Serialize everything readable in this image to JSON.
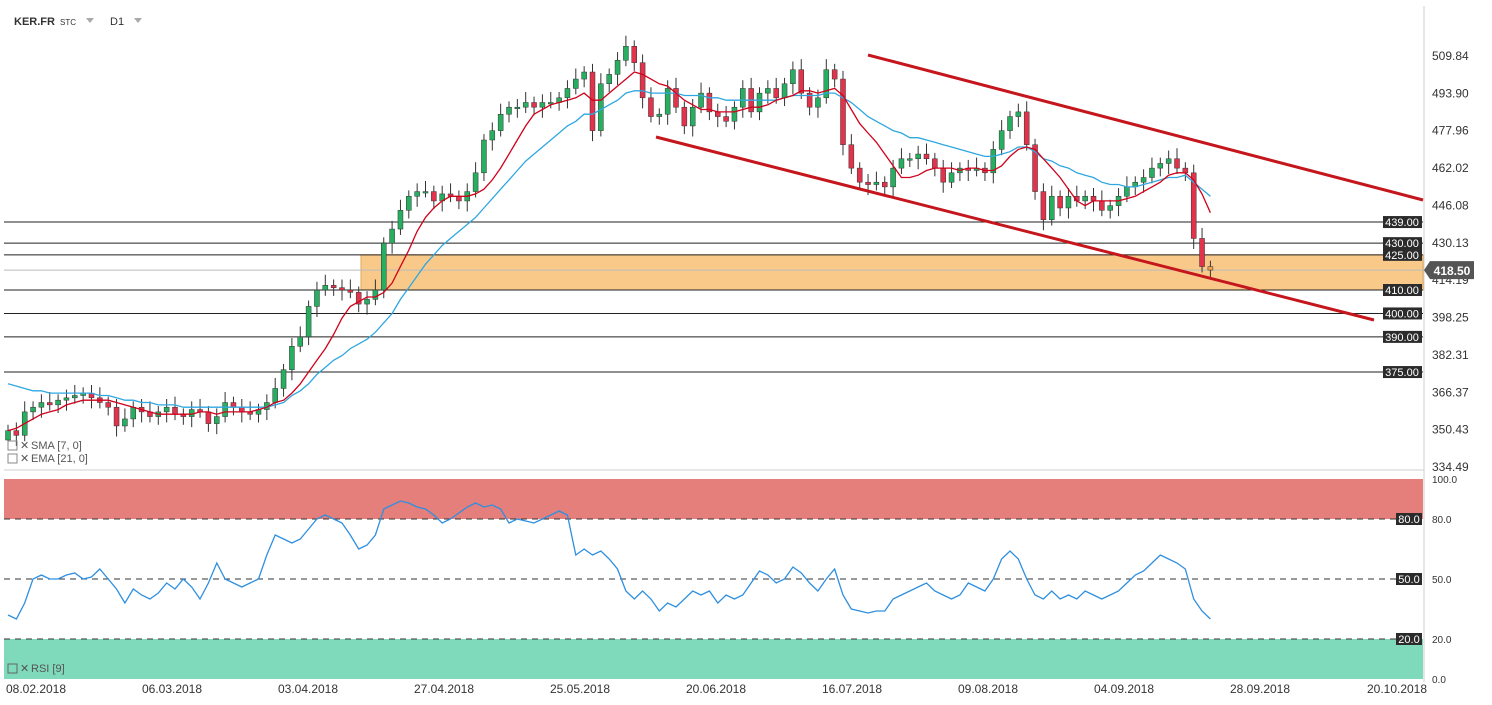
{
  "header": {
    "symbol": "KER.FR",
    "type_label": "STC",
    "interval": "D1"
  },
  "indicators": {
    "sma": "SMA [7, 0]",
    "ema": "EMA [21, 0]",
    "rsi": "RSI [9]"
  },
  "colors": {
    "bull": "#27ae60",
    "bear": "#e2334c",
    "sma": "#d0021b",
    "ema": "#2fa7e0",
    "channel": "#c4161c",
    "zone": "#f9c98a",
    "rsi_line": "#2f8fe0",
    "overbought": "#e57f7b",
    "oversold": "#7fd9bb",
    "level_tag": "#2b2b2b",
    "price_tag": "#555555"
  },
  "chart_data": [
    {
      "type": "candlestick",
      "title": "",
      "x_dates": [
        "08.02.2018",
        "06.03.2018",
        "03.04.2018",
        "27.04.2018",
        "25.05.2018",
        "20.06.2018",
        "16.07.2018",
        "09.08.2018",
        "04.09.2018",
        "28.09.2018",
        "20.10.2018"
      ],
      "y_ticks": [
        "509.84",
        "493.90",
        "477.96",
        "462.02",
        "446.08",
        "430.13",
        "414.19",
        "398.25",
        "382.31",
        "366.37",
        "350.43",
        "334.49"
      ],
      "ylim": [
        334.49,
        509.84
      ],
      "current_price": "418.50",
      "levels": [
        "439.00",
        "430.00",
        "425.00",
        "410.00",
        "400.00",
        "390.00",
        "375.00"
      ],
      "support_zone": [
        410,
        425
      ],
      "closes": [
        350,
        348,
        358,
        360,
        362,
        361,
        363,
        364,
        365,
        366,
        364,
        362,
        360,
        352,
        355,
        360,
        358,
        356,
        358,
        360,
        357,
        356,
        359,
        358,
        353,
        356,
        362,
        360,
        358,
        357,
        359,
        362,
        368,
        376,
        386,
        390,
        403,
        410,
        412,
        411,
        410,
        409,
        404,
        406,
        410,
        430,
        436,
        444,
        450,
        452,
        452,
        448,
        451,
        450,
        448,
        452,
        460,
        474,
        478,
        485,
        488,
        488,
        490,
        488,
        490,
        490,
        492,
        496,
        500,
        503,
        478,
        498,
        502,
        508,
        514,
        507,
        492,
        484,
        485,
        496,
        488,
        480,
        488,
        494,
        486,
        484,
        482,
        488,
        496,
        486,
        494,
        496,
        492,
        498,
        504,
        494,
        488,
        492,
        504,
        500,
        472,
        462,
        456,
        455,
        456,
        454,
        462,
        466,
        466,
        468,
        466,
        462,
        456,
        460,
        462,
        461,
        462,
        460,
        470,
        478,
        484,
        486,
        472,
        452,
        440,
        450,
        445,
        450,
        448,
        450,
        448,
        444,
        446,
        450,
        454,
        456,
        458,
        462,
        464,
        466,
        462,
        460,
        432,
        420,
        418.5
      ],
      "sma": [
        350,
        351,
        353,
        355,
        357,
        358,
        359,
        361,
        362,
        363,
        363,
        363,
        363,
        362,
        361,
        360,
        359,
        358,
        357,
        357,
        357,
        357,
        357,
        358,
        358,
        357,
        358,
        358,
        358,
        358,
        359,
        360,
        362,
        363,
        366,
        370,
        375,
        380,
        385,
        391,
        398,
        403,
        405,
        407,
        407,
        409,
        413,
        420,
        427,
        435,
        441,
        445,
        448,
        450,
        450,
        450,
        451,
        453,
        457,
        462,
        468,
        474,
        480,
        485,
        487,
        489,
        490,
        491,
        492,
        494,
        491,
        491,
        494,
        497,
        500,
        503,
        502,
        500,
        498,
        497,
        494,
        491,
        489,
        487,
        487,
        486,
        486,
        486,
        487,
        488,
        488,
        489,
        491,
        492,
        493,
        495,
        495,
        494,
        495,
        496,
        493,
        487,
        481,
        477,
        473,
        468,
        463,
        458,
        458,
        459,
        461,
        462,
        462,
        462,
        461,
        462,
        462,
        461,
        461,
        463,
        467,
        470,
        471,
        470,
        466,
        462,
        458,
        453,
        448,
        446,
        448,
        448,
        448,
        448,
        449,
        450,
        452,
        454,
        456,
        459,
        460,
        460,
        457,
        451,
        443
      ],
      "ema": [
        370,
        369,
        368,
        367,
        367,
        366,
        366,
        366,
        366,
        366,
        366,
        365,
        365,
        364,
        363,
        363,
        362,
        362,
        361,
        361,
        361,
        360,
        360,
        360,
        360,
        360,
        360,
        360,
        360,
        360,
        360,
        360,
        361,
        362,
        365,
        367,
        370,
        374,
        377,
        380,
        382,
        385,
        387,
        389,
        392,
        396,
        400,
        406,
        411,
        416,
        421,
        425,
        429,
        432,
        435,
        438,
        441,
        445,
        449,
        453,
        457,
        461,
        465,
        468,
        471,
        474,
        477,
        480,
        482,
        485,
        485,
        487,
        489,
        491,
        494,
        495,
        495,
        494,
        494,
        494,
        494,
        493,
        493,
        493,
        492,
        492,
        491,
        491,
        491,
        491,
        491,
        491,
        491,
        492,
        493,
        493,
        493,
        493,
        494,
        494,
        492,
        490,
        487,
        484,
        482,
        480,
        478,
        477,
        475,
        475,
        474,
        473,
        472,
        471,
        470,
        469,
        468,
        467,
        467,
        468,
        469,
        471,
        471,
        469,
        466,
        465,
        463,
        462,
        460,
        459,
        458,
        456,
        455,
        455,
        454,
        454,
        455,
        456,
        457,
        458,
        458,
        459,
        456,
        453,
        450
      ]
    },
    {
      "type": "line",
      "title": "",
      "series_name": "",
      "y_ticks": [
        "100.0",
        "80.0",
        "50.0",
        "20.0",
        "0.0"
      ],
      "ylim": [
        0,
        100
      ],
      "levels": [
        "80.0",
        "50.0",
        "20.0"
      ],
      "values": [
        32,
        30,
        38,
        50,
        52,
        50,
        50,
        52,
        53,
        50,
        51,
        55,
        50,
        45,
        38,
        45,
        42,
        40,
        43,
        48,
        45,
        50,
        46,
        40,
        48,
        58,
        50,
        48,
        46,
        48,
        50,
        62,
        72,
        70,
        68,
        70,
        75,
        80,
        82,
        80,
        78,
        72,
        65,
        67,
        72,
        85,
        87,
        89,
        88,
        86,
        85,
        82,
        78,
        80,
        83,
        86,
        88,
        86,
        87,
        85,
        78,
        80,
        79,
        78,
        80,
        82,
        84,
        82,
        62,
        65,
        62,
        64,
        60,
        55,
        44,
        40,
        44,
        40,
        34,
        38,
        36,
        40,
        44,
        42,
        44,
        38,
        42,
        40,
        42,
        48,
        54,
        52,
        48,
        50,
        56,
        53,
        48,
        44,
        50,
        55,
        42,
        35,
        34,
        33,
        34,
        34,
        40,
        42,
        44,
        46,
        48,
        44,
        42,
        40,
        42,
        48,
        46,
        44,
        50,
        60,
        64,
        60,
        50,
        42,
        40,
        44,
        40,
        42,
        40,
        44,
        42,
        40,
        42,
        44,
        48,
        52,
        54,
        58,
        62,
        60,
        58,
        55,
        40,
        34,
        30
      ]
    }
  ]
}
